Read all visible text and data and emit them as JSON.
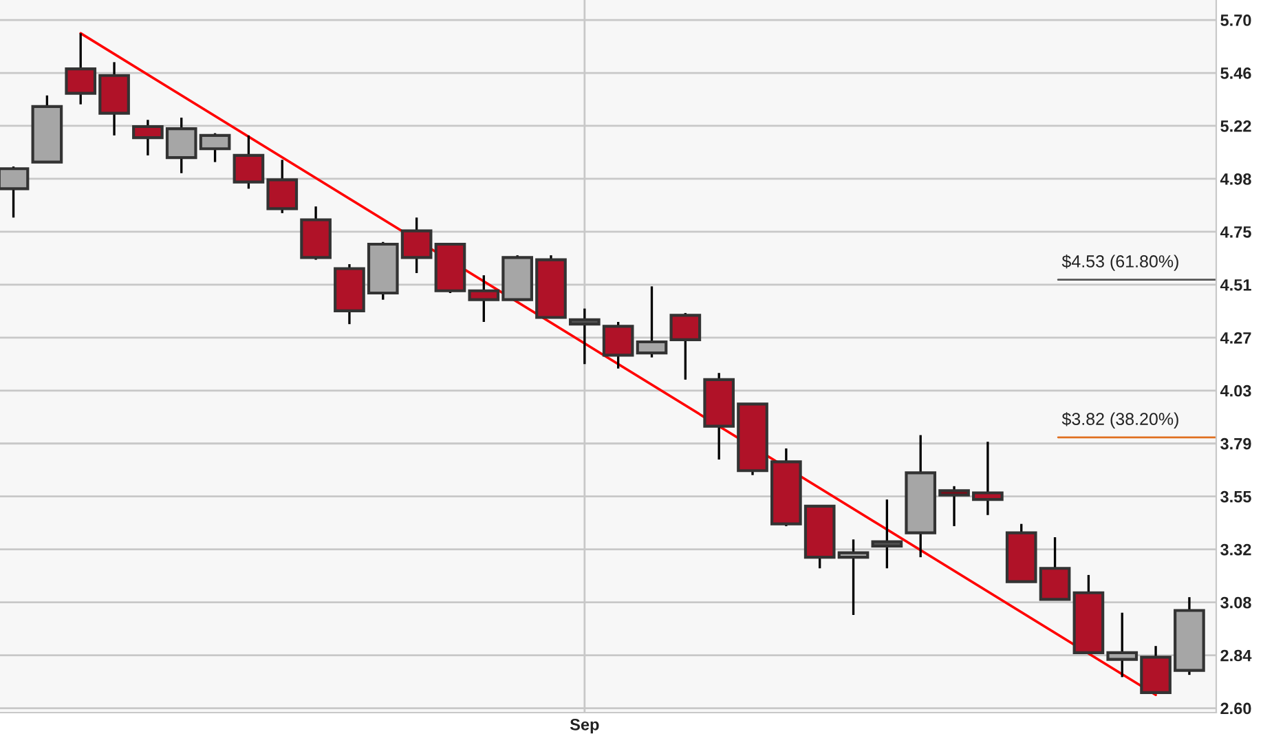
{
  "chart_data": {
    "type": "candlestick",
    "categories": [
      null,
      null,
      null,
      null,
      null,
      null,
      null,
      null,
      null,
      null,
      null,
      null,
      null,
      null,
      null,
      null,
      null,
      "Sep",
      null,
      null,
      null,
      null,
      null,
      null,
      null,
      null,
      null,
      null,
      null,
      null,
      null,
      null,
      null,
      null,
      null,
      null
    ],
    "ohlc": [
      [
        4.94,
        5.04,
        4.81,
        5.03
      ],
      [
        5.06,
        5.36,
        5.06,
        5.31
      ],
      [
        5.48,
        5.64,
        5.32,
        5.37
      ],
      [
        5.45,
        5.51,
        5.18,
        5.28
      ],
      [
        5.22,
        5.25,
        5.09,
        5.17
      ],
      [
        5.08,
        5.26,
        5.01,
        5.21
      ],
      [
        5.12,
        5.19,
        5.06,
        5.18
      ],
      [
        5.09,
        5.18,
        4.94,
        4.97
      ],
      [
        4.98,
        5.07,
        4.83,
        4.85
      ],
      [
        4.8,
        4.86,
        4.62,
        4.63
      ],
      [
        4.58,
        4.6,
        4.33,
        4.39
      ],
      [
        4.47,
        4.7,
        4.44,
        4.69
      ],
      [
        4.75,
        4.81,
        4.56,
        4.63
      ],
      [
        4.69,
        4.69,
        4.47,
        4.48
      ],
      [
        4.48,
        4.55,
        4.34,
        4.44
      ],
      [
        4.44,
        4.64,
        4.44,
        4.63
      ],
      [
        4.62,
        4.64,
        4.36,
        4.36
      ],
      [
        4.33,
        4.4,
        4.15,
        4.35
      ],
      [
        4.32,
        4.34,
        4.13,
        4.19
      ],
      [
        4.2,
        4.5,
        4.18,
        4.25
      ],
      [
        4.37,
        4.38,
        4.08,
        4.26
      ],
      [
        4.08,
        4.11,
        3.72,
        3.87
      ],
      [
        3.97,
        3.97,
        3.65,
        3.67
      ],
      [
        3.71,
        3.77,
        3.42,
        3.43
      ],
      [
        3.51,
        3.51,
        3.23,
        3.28
      ],
      [
        3.28,
        3.36,
        3.02,
        3.3
      ],
      [
        3.33,
        3.54,
        3.23,
        3.35
      ],
      [
        3.39,
        3.83,
        3.28,
        3.66
      ],
      [
        3.58,
        3.6,
        3.42,
        3.56
      ],
      [
        3.57,
        3.8,
        3.47,
        3.54
      ],
      [
        3.39,
        3.43,
        3.17,
        3.17
      ],
      [
        3.23,
        3.37,
        3.09,
        3.09
      ],
      [
        3.12,
        3.2,
        2.85,
        2.85
      ],
      [
        2.82,
        3.03,
        2.74,
        2.85
      ],
      [
        2.83,
        2.88,
        2.67,
        2.67
      ],
      [
        2.77,
        3.1,
        2.75,
        3.04
      ]
    ],
    "colors": [
      "#a6a6a6",
      "#a6a6a6",
      "#b01228",
      "#b01228",
      "#b01228",
      "#a6a6a6",
      "#a6a6a6",
      "#b01228",
      "#b01228",
      "#b01228",
      "#b01228",
      "#a6a6a6",
      "#b01228",
      "#b01228",
      "#b01228",
      "#a6a6a6",
      "#b01228",
      "#555555",
      "#b01228",
      "#a6a6a6",
      "#b01228",
      "#b01228",
      "#b01228",
      "#b01228",
      "#b01228",
      "#a6a6a6",
      "#555555",
      "#a6a6a6",
      "#7a0c1a",
      "#b01228",
      "#b01228",
      "#b01228",
      "#b01228",
      "#a6a6a6",
      "#b01228",
      "#a6a6a6"
    ],
    "series": [
      {
        "type": "line",
        "color": "#ff0000",
        "values": [
          null,
          null,
          5.64,
          null,
          null,
          null,
          null,
          null,
          null,
          null,
          null,
          null,
          null,
          null,
          null,
          null,
          null,
          null,
          null,
          null,
          null,
          null,
          null,
          null,
          null,
          null,
          null,
          null,
          null,
          null,
          null,
          null,
          null,
          null,
          2.66,
          null
        ]
      }
    ],
    "ref_lines": [
      {
        "axis": "y",
        "value": 4.53,
        "label": "$4.53 (61.80%)",
        "color": "#555555"
      },
      {
        "axis": "y",
        "value": 3.82,
        "label": "$3.82 (38.20%)",
        "color": "#e07020"
      }
    ],
    "ylim": [
      2.58,
      5.79
    ],
    "yticks": [
      {
        "value": 2.6,
        "label": "2.60"
      },
      {
        "value": 2.8385,
        "label": "2.84"
      },
      {
        "value": 3.0769,
        "label": "3.08"
      },
      {
        "value": 3.3154,
        "label": "3.32"
      },
      {
        "value": 3.5538,
        "label": "3.55"
      },
      {
        "value": 3.7923,
        "label": "3.79"
      },
      {
        "value": 4.0308,
        "label": "4.03"
      },
      {
        "value": 4.2692,
        "label": "4.27"
      },
      {
        "value": 4.5077,
        "label": "4.51"
      },
      {
        "value": 4.7462,
        "label": "4.75"
      },
      {
        "value": 4.9846,
        "label": "4.98"
      },
      {
        "value": 5.2231,
        "label": "5.22"
      },
      {
        "value": 5.4615,
        "label": "5.46"
      },
      {
        "value": 5.7,
        "label": "5.70"
      }
    ],
    "grid": true
  }
}
